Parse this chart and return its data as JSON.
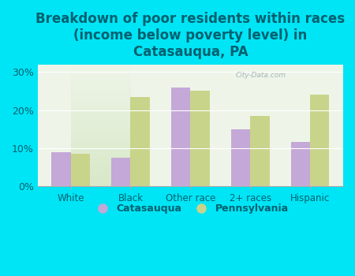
{
  "title": "Breakdown of poor residents within races\n(income below poverty level) in\nCatasauqua, PA",
  "categories": [
    "White",
    "Black",
    "Other race",
    "2+ races",
    "Hispanic"
  ],
  "catasauqua": [
    9.0,
    7.5,
    26.0,
    15.0,
    11.5
  ],
  "pennsylvania": [
    8.5,
    23.5,
    25.0,
    18.5,
    24.0
  ],
  "catasauqua_color": "#c4a8d8",
  "pennsylvania_color": "#c8d48a",
  "background_outer": "#00e5f5",
  "background_inner_top": "#d8e8c8",
  "background_inner_bottom": "#eef5e8",
  "ylim": [
    0,
    32
  ],
  "yticks": [
    0,
    10,
    20,
    30
  ],
  "ytick_labels": [
    "0%",
    "10%",
    "20%",
    "30%"
  ],
  "bar_width": 0.32,
  "legend_catasauqua": "Catasauqua",
  "legend_pennsylvania": "Pennsylvania",
  "title_fontsize": 12,
  "title_color": "#006070",
  "tick_label_color": "#006070",
  "watermark": "City-Data.com"
}
